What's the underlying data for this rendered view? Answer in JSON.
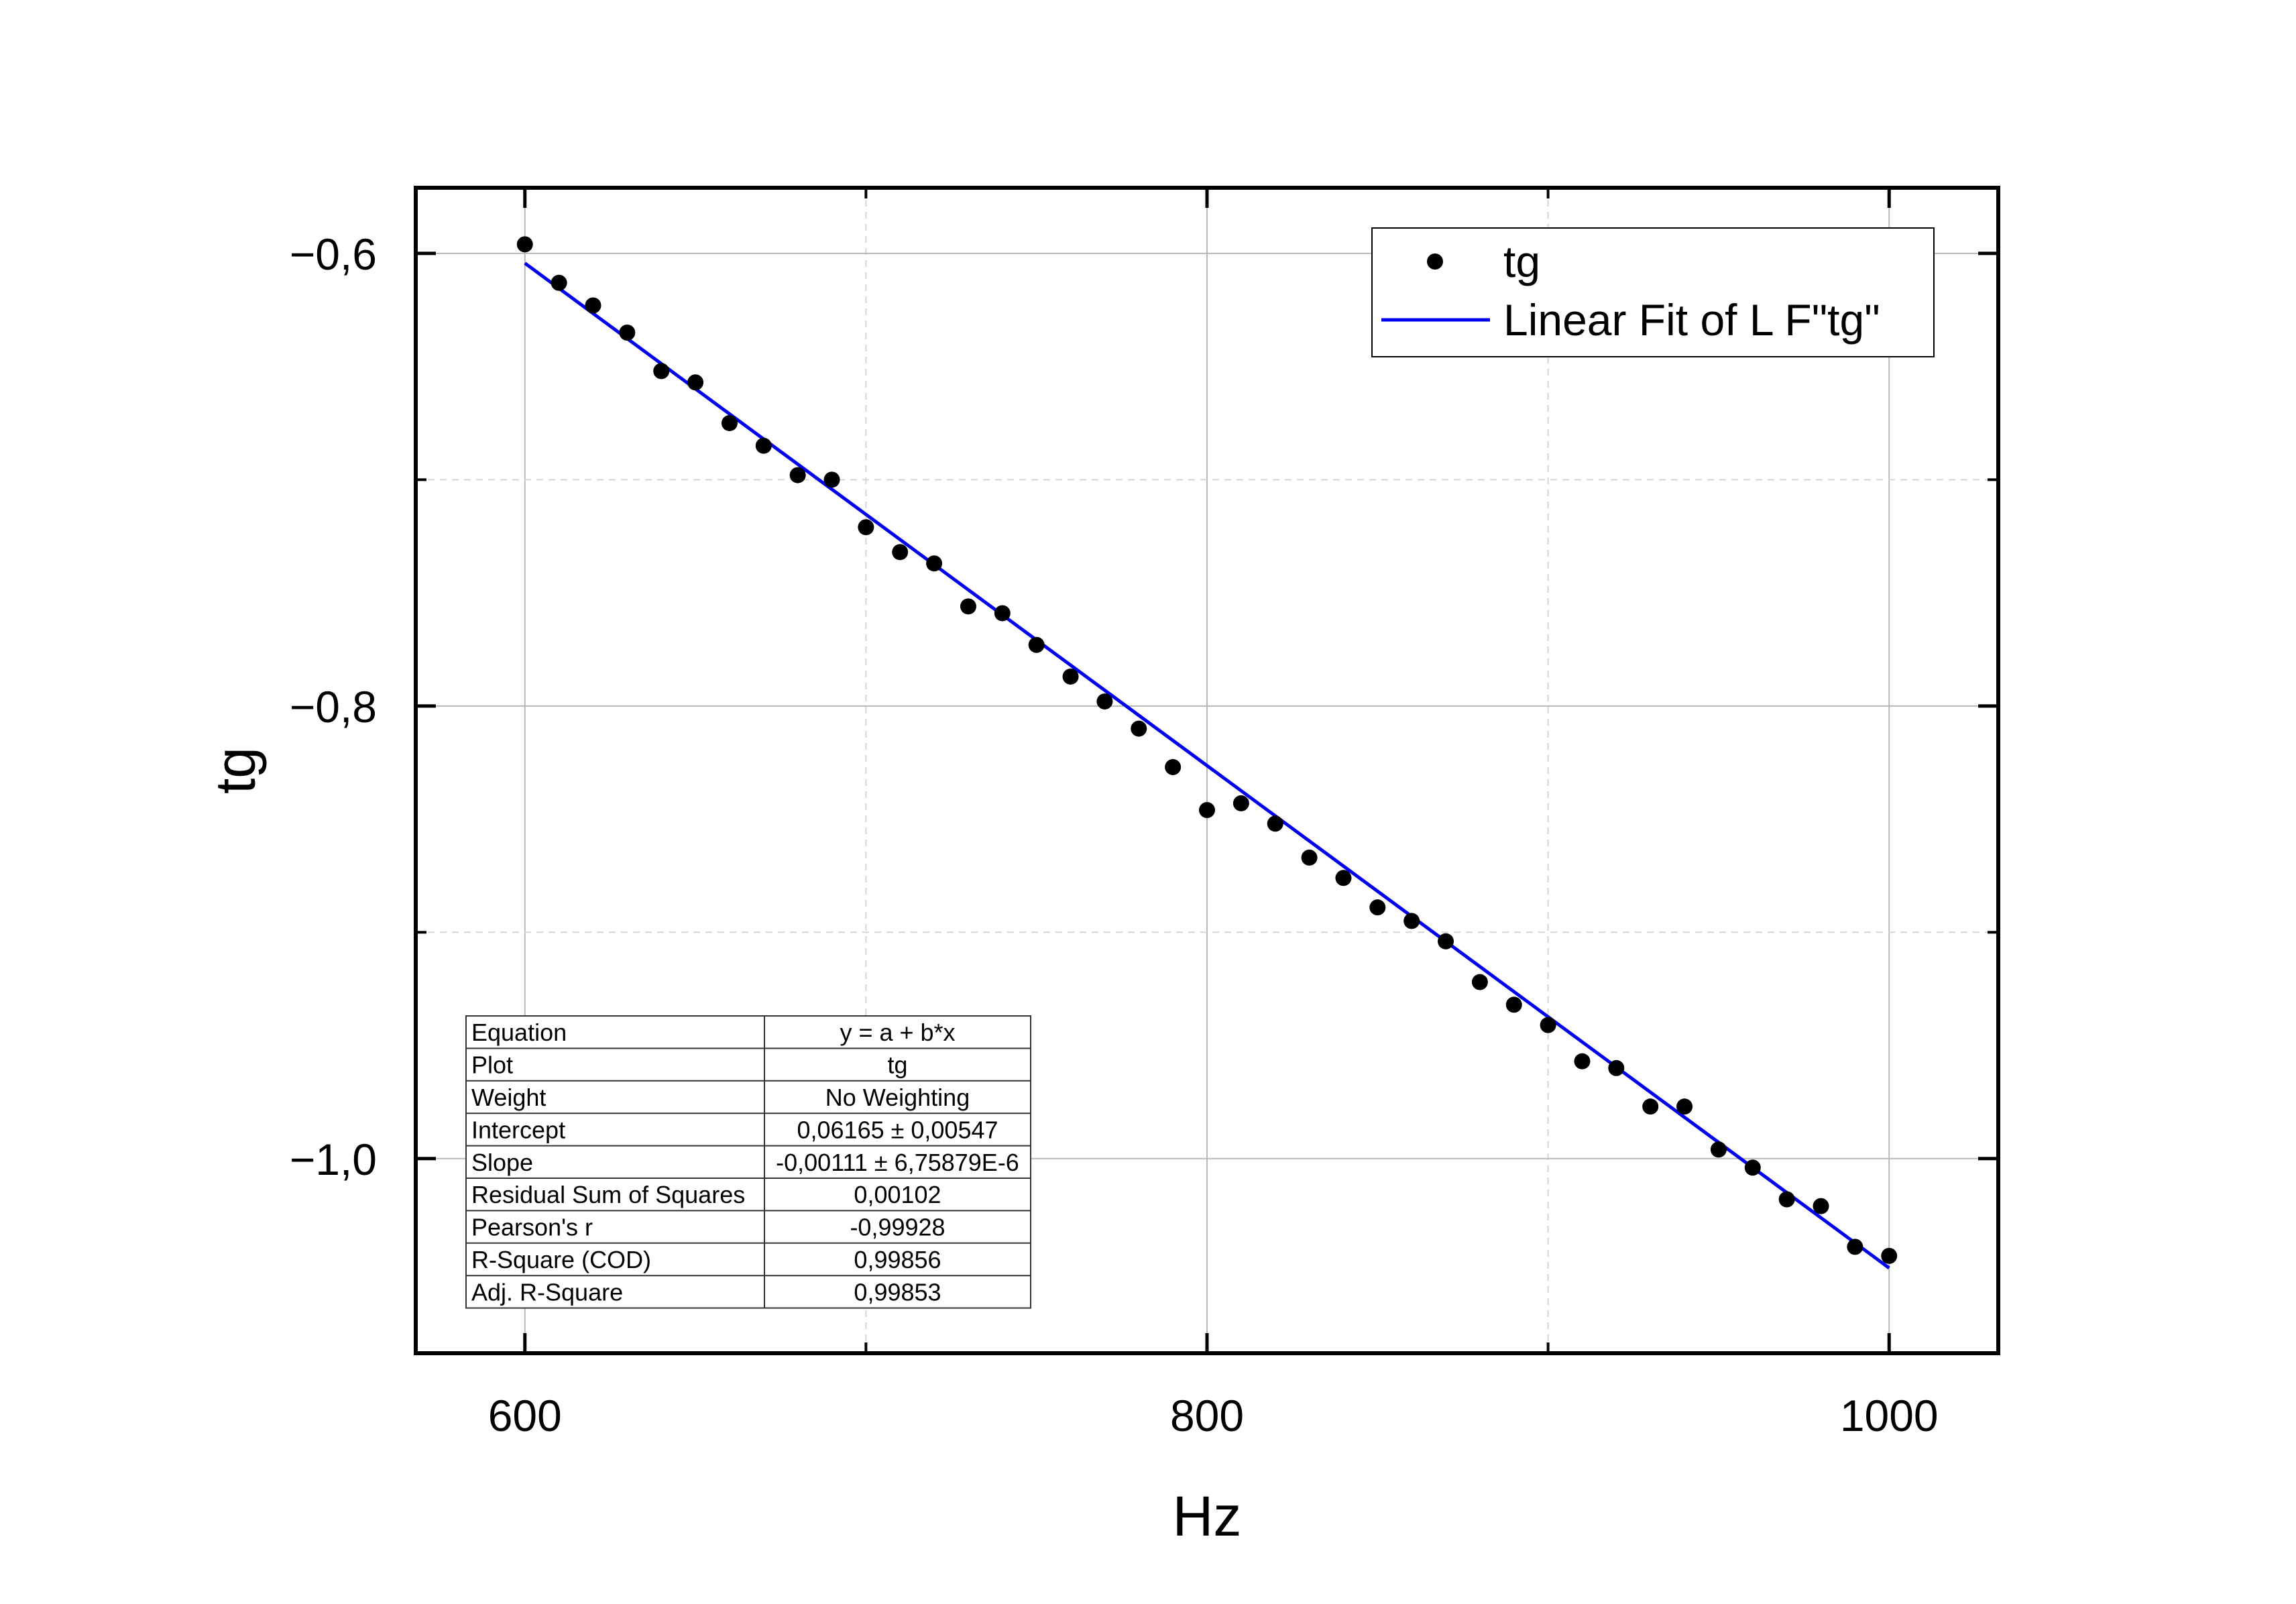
{
  "chart_data": {
    "type": "scatter",
    "xlabel": "Hz",
    "ylabel": "tg",
    "xlim": [
      568,
      1032
    ],
    "ylim": [
      -1.086,
      -0.571
    ],
    "x_ticks": [
      600,
      800,
      1000
    ],
    "x_tick_labels": [
      "600",
      "800",
      "1000"
    ],
    "x_minor_ticks": [
      700,
      900
    ],
    "y_ticks": [
      -0.6,
      -0.8,
      -1.0
    ],
    "y_tick_labels": [
      "−0,6",
      "−0,8",
      "−1,0"
    ],
    "y_minor_ticks": [
      -0.7,
      -0.9
    ],
    "grid": true,
    "legend": {
      "position": "top-right",
      "entries": [
        "tg",
        "Linear Fit of L F\"tg\""
      ]
    },
    "series": [
      {
        "name": "tg",
        "kind": "scatter",
        "color": "#000000",
        "x": [
          600,
          610,
          620,
          630,
          640,
          650,
          660,
          670,
          680,
          690,
          700,
          710,
          720,
          730,
          740,
          750,
          760,
          770,
          780,
          790,
          800,
          810,
          820,
          830,
          840,
          850,
          860,
          870,
          880,
          890,
          900,
          910,
          920,
          930,
          940,
          950,
          960,
          970,
          980,
          990,
          1000
        ],
        "y": [
          -0.596,
          -0.613,
          -0.623,
          -0.635,
          -0.652,
          -0.657,
          -0.675,
          -0.685,
          -0.698,
          -0.7,
          -0.721,
          -0.732,
          -0.737,
          -0.756,
          -0.759,
          -0.773,
          -0.787,
          -0.798,
          -0.81,
          -0.827,
          -0.846,
          -0.843,
          -0.852,
          -0.867,
          -0.876,
          -0.889,
          -0.895,
          -0.904,
          -0.922,
          -0.932,
          -0.941,
          -0.957,
          -0.96,
          -0.977,
          -0.977,
          -0.996,
          -1.004,
          -1.018,
          -1.021,
          -1.039,
          -1.043
        ]
      },
      {
        "name": "Linear Fit of L F\"tg\"",
        "kind": "line",
        "color": "#0000ee",
        "intercept": 0.06165,
        "slope": -0.00111,
        "x_range": [
          600,
          1000
        ]
      }
    ],
    "fit_table": [
      {
        "label": "Equation",
        "value": "y = a + b*x"
      },
      {
        "label": "Plot",
        "value": "tg"
      },
      {
        "label": "Weight",
        "value": "No Weighting"
      },
      {
        "label": "Intercept",
        "value": "0,06165 ± 0,00547"
      },
      {
        "label": "Slope",
        "value": "-0,00111 ± 6,75879E-6"
      },
      {
        "label": "Residual Sum of Squares",
        "value": "0,00102"
      },
      {
        "label": "Pearson's r",
        "value": "-0,99928"
      },
      {
        "label": "R-Square (COD)",
        "value": "0,99856"
      },
      {
        "label": "Adj. R-Square",
        "value": "0,99853"
      }
    ]
  }
}
